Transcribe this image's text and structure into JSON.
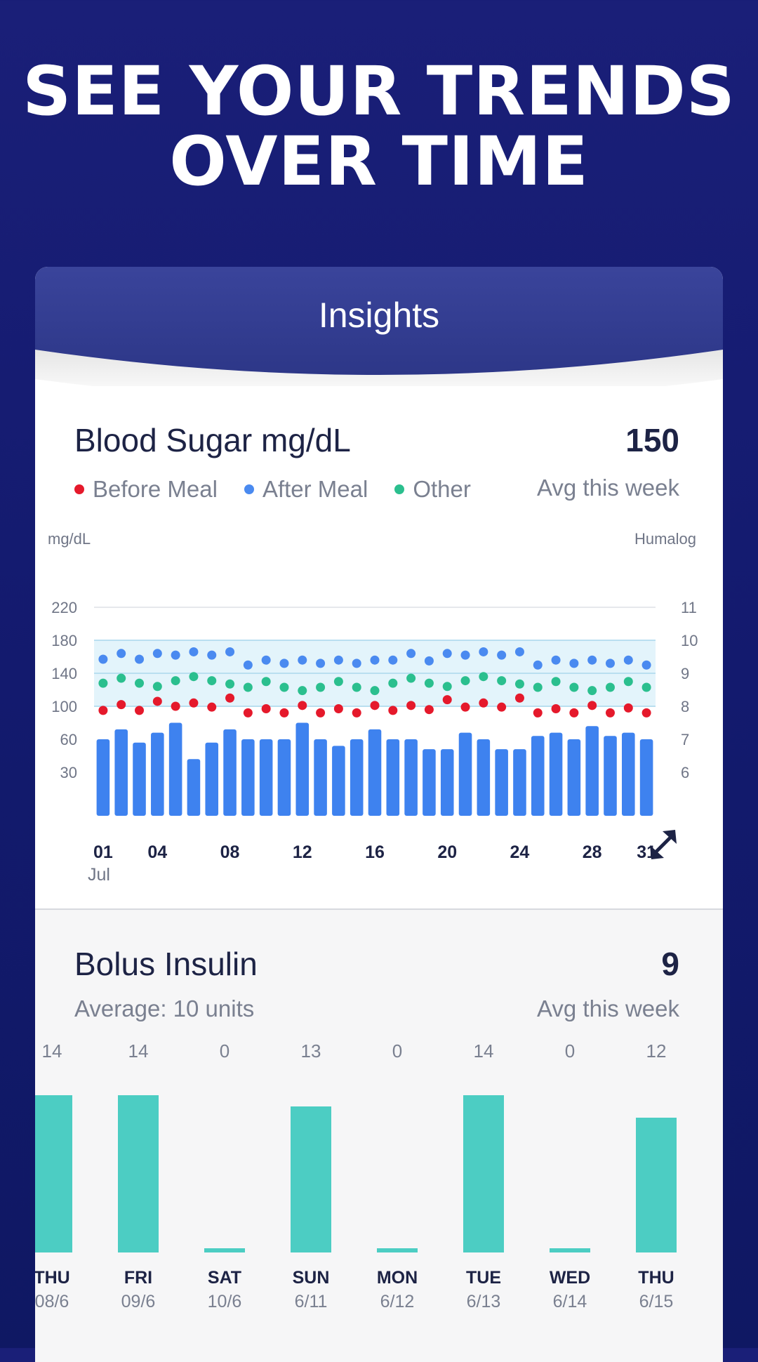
{
  "hero": {
    "line1": "SEE YOUR TRENDS",
    "line2": "OVER TIME"
  },
  "card": {
    "title": "Insights"
  },
  "colors": {
    "background": "#141b6e",
    "header": "#323b92",
    "before_meal": "#e5192b",
    "after_meal": "#4a8af0",
    "other": "#2bbf8e",
    "bar_blue": "#3e82ef",
    "bolus_bar": "#4ccdc3",
    "target_band": "#e3f4fb"
  },
  "blood_sugar": {
    "title": "Blood Sugar mg/dL",
    "value": "150",
    "value_caption": "Avg this week",
    "legend": [
      "Before Meal",
      "After Meal",
      "Other"
    ],
    "left_axis_label": "mg/dL",
    "right_axis_label": "Humalog",
    "month_label": "Jul",
    "expand_icon": "expand-arrows-icon"
  },
  "bolus": {
    "title": "Bolus Insulin",
    "subtitle": "Average: 10 units",
    "value": "9",
    "value_caption": "Avg this week"
  },
  "chart_data": [
    {
      "type": "bar",
      "title": "Blood Sugar mg/dL",
      "ylabel": "mg/dL",
      "y2label": "Humalog",
      "y_ticks": [
        220,
        180,
        140,
        100,
        60,
        30
      ],
      "y2_ticks": [
        11,
        10,
        9,
        8,
        7,
        6
      ],
      "x_tick_labels": [
        "01",
        "04",
        "08",
        "12",
        "16",
        "20",
        "24",
        "28",
        "31"
      ],
      "x_tick_days": [
        1,
        4,
        8,
        12,
        16,
        20,
        24,
        28,
        31
      ],
      "target_range": [
        100,
        180
      ],
      "target_lines": [
        100,
        140,
        180
      ],
      "grid": true,
      "series": [
        {
          "name": "Humalog",
          "kind": "bar",
          "values": [
            7.0,
            7.3,
            6.9,
            7.2,
            7.5,
            6.4,
            6.9,
            7.3,
            7.0,
            7.0,
            7.0,
            7.5,
            7.0,
            6.8,
            7.0,
            7.3,
            7.0,
            7.0,
            6.7,
            6.7,
            7.2,
            7.0,
            6.7,
            6.7,
            7.1,
            7.2,
            7.0,
            7.4,
            7.1,
            7.2,
            7.0
          ]
        },
        {
          "name": "Before Meal",
          "kind": "scatter",
          "values": [
            95,
            102,
            95,
            106,
            100,
            104,
            99,
            110,
            92,
            97,
            92,
            101,
            92,
            97,
            92,
            101,
            95,
            101,
            96,
            108,
            99,
            104,
            99,
            110,
            92,
            97,
            92,
            101,
            92,
            98,
            92
          ]
        },
        {
          "name": "After Meal",
          "kind": "scatter",
          "values": [
            157,
            164,
            157,
            164,
            162,
            166,
            162,
            166,
            150,
            156,
            152,
            156,
            152,
            156,
            152,
            156,
            156,
            164,
            155,
            164,
            162,
            166,
            162,
            166,
            150,
            156,
            152,
            156,
            152,
            156,
            150
          ]
        },
        {
          "name": "Other",
          "kind": "scatter",
          "values": [
            128,
            134,
            128,
            124,
            131,
            136,
            131,
            127,
            123,
            130,
            123,
            119,
            123,
            130,
            123,
            119,
            128,
            134,
            128,
            124,
            131,
            136,
            131,
            127,
            123,
            130,
            123,
            119,
            123,
            130,
            123
          ]
        }
      ]
    },
    {
      "type": "bar",
      "title": "Bolus Insulin",
      "categories": [
        "THU",
        "FRI",
        "SAT",
        "SUN",
        "MON",
        "TUE",
        "WED",
        "THU"
      ],
      "dates": [
        "08/6",
        "09/6",
        "10/6",
        "6/11",
        "6/12",
        "6/13",
        "6/14",
        "6/15"
      ],
      "values": [
        14,
        14,
        0,
        13,
        0,
        14,
        0,
        12
      ],
      "unit": "units"
    }
  ]
}
